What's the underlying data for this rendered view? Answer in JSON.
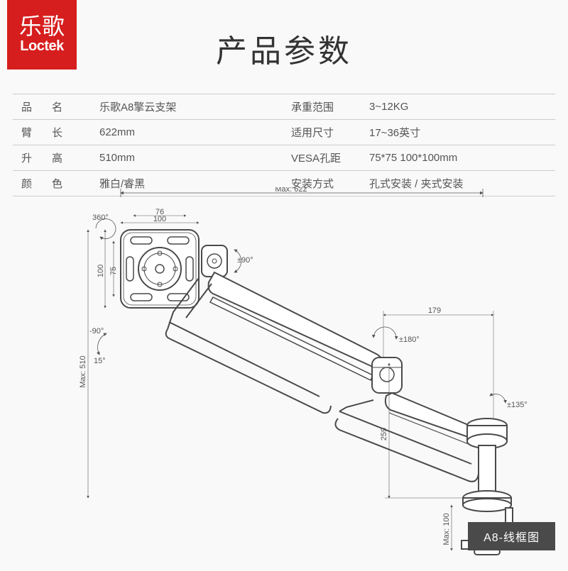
{
  "logo": {
    "cn": "乐歌",
    "en": "Loctek"
  },
  "title": "产品参数",
  "table": {
    "rows": [
      {
        "label_chars": [
          "品",
          "名"
        ],
        "value": "乐歌A8擎云支架",
        "label2": "承重范围",
        "value2": "3~12KG"
      },
      {
        "label_chars": [
          "臂",
          "长"
        ],
        "value": "622mm",
        "label2": "适用尺寸",
        "value2": "17~36英寸"
      },
      {
        "label_chars": [
          "升",
          "高"
        ],
        "value": "510mm",
        "label2": "VESA孔距",
        "value2": "75*75   100*100mm"
      },
      {
        "label_chars": [
          "颜",
          "色"
        ],
        "value": "雅白/睿黑",
        "label2": "安装方式",
        "value2": "孔式安装 / 夹式安装"
      }
    ]
  },
  "diagram": {
    "caption": "A8-线框图",
    "dims": {
      "max_width": "Max: 622",
      "plate_w1": "100",
      "plate_w2": "76",
      "plate_h1": "100",
      "plate_h2": "75",
      "tilt_up": "±90°",
      "swivel": "360°",
      "tilt_down_neg": "-90°",
      "tilt_down_pos": "15°",
      "arm2_len": "179",
      "arm2_rot": "±180°",
      "arm1_rot": "±135°",
      "arm1_len": "259",
      "max_height": "Max: 510",
      "base_h": "Max: 100"
    },
    "colors": {
      "stroke": "#4a4a4a",
      "fill": "#ffffff",
      "dim": "#555555",
      "bg": "#f9f9f9"
    }
  }
}
